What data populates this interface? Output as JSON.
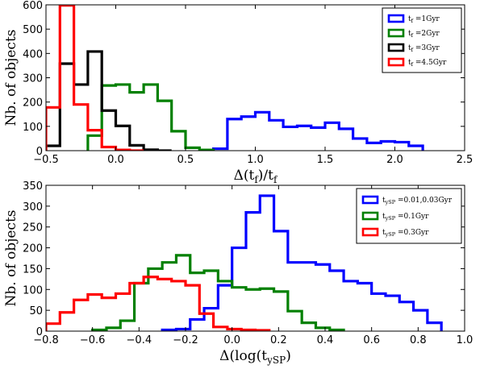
{
  "chart_data": [
    {
      "type": "histogram",
      "xlabel": "Δ(t_f)/t_f",
      "xlabel_parts": {
        "pre": "Δ(t",
        "sub": "f",
        "mid": ")/t",
        "sub2": "f"
      },
      "ylabel": "Nb. of objects",
      "xlim": [
        -0.5,
        2.5
      ],
      "ylim": [
        0,
        600
      ],
      "xticks": [
        -0.5,
        0.0,
        0.5,
        1.0,
        1.5,
        2.0,
        2.5
      ],
      "xtick_labels": [
        "−0.5",
        "0.0",
        "0.5",
        "1.0",
        "1.5",
        "2.0",
        "2.5"
      ],
      "yticks": [
        0,
        100,
        200,
        300,
        400,
        500,
        600
      ],
      "ytick_labels": [
        "0",
        "100",
        "200",
        "300",
        "400",
        "500",
        "600"
      ],
      "legend_position": "top-right",
      "series": [
        {
          "name": "t_f = 1Gyr",
          "label_pre": "t",
          "label_sub": "f",
          "label_post": " =1Gyr",
          "color": "#0000ff",
          "edges": [
            0.7,
            0.8,
            0.9,
            1.0,
            1.1,
            1.2,
            1.3,
            1.4,
            1.5,
            1.6,
            1.7,
            1.8,
            1.9,
            2.0,
            2.1,
            2.2
          ],
          "values": [
            8,
            130,
            140,
            158,
            125,
            98,
            102,
            95,
            115,
            90,
            50,
            32,
            38,
            35,
            20
          ]
        },
        {
          "name": "t_f = 2Gyr",
          "label_pre": "t",
          "label_sub": "f",
          "label_post": " =2Gyr",
          "color": "#008000",
          "edges": [
            -0.2,
            -0.1,
            0.0,
            0.1,
            0.2,
            0.3,
            0.4,
            0.5,
            0.6,
            0.7
          ],
          "values": [
            62,
            268,
            272,
            240,
            272,
            205,
            80,
            12,
            3
          ]
        },
        {
          "name": "t_f = 3Gyr",
          "label_pre": "t",
          "label_sub": "f",
          "label_post": " =3Gyr",
          "color": "#000000",
          "edges": [
            -0.5,
            -0.4,
            -0.3,
            -0.2,
            -0.1,
            0.0,
            0.1,
            0.2,
            0.3,
            0.4
          ],
          "values": [
            20,
            358,
            272,
            408,
            165,
            102,
            22,
            4,
            0
          ]
        },
        {
          "name": "t_f = 4.5Gyr",
          "label_pre": "t",
          "label_sub": "f",
          "label_post": " =4.5Gyr",
          "color": "#ff0000",
          "edges": [
            -0.5,
            -0.4,
            -0.3,
            -0.2,
            -0.1,
            0.0,
            0.1,
            0.2
          ],
          "values": [
            178,
            598,
            190,
            84,
            15,
            3,
            0
          ]
        }
      ]
    },
    {
      "type": "histogram",
      "xlabel": "Δ(log(t_ySP)",
      "xlabel_parts": {
        "pre": "Δ(log(t",
        "sub": "ySP",
        "mid": ")",
        "sub2": ""
      },
      "ylabel": "Nb. of objects",
      "xlim": [
        -0.8,
        1.0
      ],
      "ylim": [
        0,
        350
      ],
      "xticks": [
        -0.8,
        -0.6,
        -0.4,
        -0.2,
        0.0,
        0.2,
        0.4,
        0.6,
        0.8,
        1.0
      ],
      "xtick_labels": [
        "−0.8",
        "−0.6",
        "−0.4",
        "−0.2",
        "0.0",
        "0.2",
        "0.4",
        "0.6",
        "0.8",
        "1.0"
      ],
      "yticks": [
        0,
        50,
        100,
        150,
        200,
        250,
        300,
        350
      ],
      "ytick_labels": [
        "0",
        "50",
        "100",
        "150",
        "200",
        "250",
        "300",
        "350"
      ],
      "legend_position": "top-right",
      "series": [
        {
          "name": "t_ySP = 0.01,0.03Gyr",
          "label_pre": "t",
          "label_sub": "ySP",
          "label_post": " =0.01,0.03Gyr",
          "color": "#0000ff",
          "edges": [
            -0.3,
            -0.24,
            -0.18,
            -0.12,
            -0.06,
            0.0,
            0.06,
            0.12,
            0.18,
            0.24,
            0.3,
            0.36,
            0.42,
            0.48,
            0.54,
            0.6,
            0.66,
            0.72,
            0.78,
            0.84,
            0.9
          ],
          "values": [
            3,
            5,
            28,
            55,
            110,
            200,
            285,
            325,
            240,
            165,
            165,
            160,
            145,
            120,
            115,
            90,
            85,
            70,
            50,
            20
          ]
        },
        {
          "name": "t_ySP = 0.1Gyr",
          "label_pre": "t",
          "label_sub": "ySP",
          "label_post": " =0.1Gyr",
          "color": "#008000",
          "edges": [
            -0.6,
            -0.54,
            -0.48,
            -0.42,
            -0.36,
            -0.3,
            -0.24,
            -0.18,
            -0.12,
            -0.06,
            0.0,
            0.06,
            0.12,
            0.18,
            0.24,
            0.3,
            0.36,
            0.42,
            0.48
          ],
          "values": [
            3,
            8,
            25,
            115,
            150,
            165,
            182,
            140,
            145,
            120,
            105,
            100,
            102,
            95,
            48,
            20,
            8,
            3
          ]
        },
        {
          "name": "t_ySP = 0.3Gyr",
          "label_pre": "t",
          "label_sub": "ySP",
          "label_post": " =0.3Gyr",
          "color": "#ff0000",
          "edges": [
            -0.8,
            -0.74,
            -0.68,
            -0.62,
            -0.56,
            -0.5,
            -0.44,
            -0.38,
            -0.32,
            -0.26,
            -0.2,
            -0.14,
            -0.08,
            -0.02,
            0.04,
            0.1,
            0.16
          ],
          "values": [
            18,
            45,
            75,
            88,
            80,
            90,
            115,
            130,
            125,
            120,
            110,
            42,
            10,
            5,
            3,
            2
          ]
        }
      ]
    }
  ]
}
